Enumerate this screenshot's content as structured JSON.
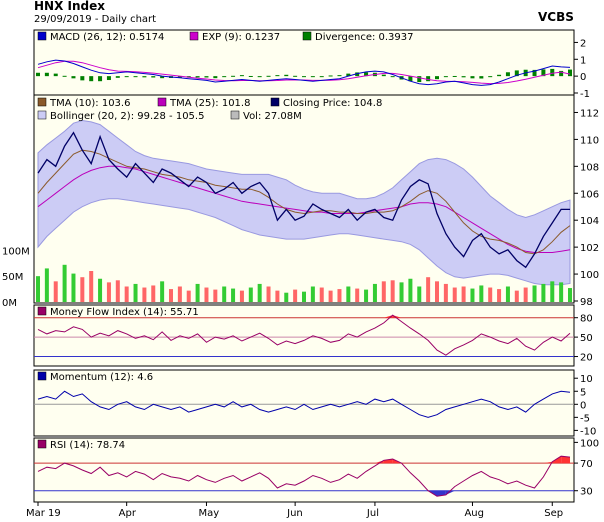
{
  "header": {
    "title": "HNX Index",
    "subtitle": "29/09/2019 - Daily chart",
    "brand": "VCBS"
  },
  "colors": {
    "background": "#ffffffff",
    "panel_bg": "#fffff0",
    "macd": "#0000cc",
    "signal": "#cc00cc",
    "divergence": "#008000",
    "tma10": "#8b5a2b",
    "tma25": "#bb00bb",
    "price": "#000066",
    "bollinger_fill": "#ccccf5",
    "bollinger_line": "#9999e0",
    "volume_up": "#33cc33",
    "volume_down": "#ff6666",
    "mfi": "#990066",
    "momentum": "#0000aa",
    "rsi": "#990066",
    "overbought_fill": "#ff3333",
    "oversold_fill": "#3333cc"
  },
  "chart_data": [
    {
      "type": "line",
      "panel": "macd",
      "legend": [
        "MACD (26, 12): 0.5174",
        "EXP (9): 0.1237",
        "Divergence: 0.3937"
      ],
      "y_ticks": [
        "2",
        "1",
        "0",
        "-1"
      ],
      "ylim": [
        -1,
        2.5
      ],
      "series": [
        {
          "name": "MACD (26, 12)",
          "values": [
            0.7,
            0.85,
            0.95,
            0.9,
            0.75,
            0.55,
            0.35,
            0.2,
            0.15,
            0.2,
            0.25,
            0.2,
            0.15,
            0.1,
            0.0,
            -0.05,
            -0.1,
            -0.15,
            -0.2,
            -0.25,
            -0.35,
            -0.3,
            -0.25,
            -0.2,
            -0.25,
            -0.3,
            -0.25,
            -0.2,
            -0.15,
            -0.2,
            -0.25,
            -0.3,
            -0.25,
            -0.2,
            -0.15,
            0.0,
            0.15,
            0.25,
            0.3,
            0.25,
            0.1,
            -0.1,
            -0.3,
            -0.45,
            -0.5,
            -0.45,
            -0.35,
            -0.3,
            -0.4,
            -0.5,
            -0.55,
            -0.5,
            -0.35,
            -0.15,
            0.05,
            0.2,
            0.3,
            0.45,
            0.6,
            0.55,
            0.52
          ]
        },
        {
          "name": "EXP (9)",
          "values": [
            0.5,
            0.65,
            0.8,
            0.88,
            0.88,
            0.8,
            0.65,
            0.5,
            0.38,
            0.3,
            0.28,
            0.26,
            0.22,
            0.18,
            0.12,
            0.06,
            0.0,
            -0.06,
            -0.12,
            -0.17,
            -0.23,
            -0.26,
            -0.27,
            -0.26,
            -0.26,
            -0.27,
            -0.27,
            -0.26,
            -0.23,
            -0.22,
            -0.23,
            -0.25,
            -0.25,
            -0.24,
            -0.21,
            -0.15,
            -0.07,
            0.02,
            0.1,
            0.16,
            0.16,
            0.1,
            0.0,
            -0.1,
            -0.2,
            -0.27,
            -0.3,
            -0.31,
            -0.33,
            -0.37,
            -0.41,
            -0.44,
            -0.43,
            -0.38,
            -0.29,
            -0.18,
            -0.07,
            0.05,
            0.17,
            0.24,
            0.12
          ]
        },
        {
          "name": "Divergence",
          "values": [
            0.2,
            0.2,
            0.15,
            0.02,
            -0.13,
            -0.25,
            -0.3,
            -0.3,
            -0.23,
            -0.1,
            -0.03,
            -0.06,
            -0.07,
            -0.08,
            -0.12,
            -0.11,
            -0.1,
            -0.09,
            -0.08,
            -0.08,
            -0.12,
            -0.04,
            0.02,
            0.06,
            0.01,
            -0.03,
            0.02,
            0.06,
            0.08,
            0.02,
            -0.02,
            -0.05,
            0.0,
            0.04,
            0.06,
            0.15,
            0.22,
            0.23,
            0.2,
            0.09,
            -0.06,
            -0.2,
            -0.3,
            -0.35,
            -0.3,
            -0.18,
            -0.05,
            0.01,
            -0.07,
            -0.13,
            -0.14,
            -0.06,
            0.08,
            0.23,
            0.34,
            0.38,
            0.37,
            0.4,
            0.43,
            0.31,
            0.39
          ]
        }
      ]
    },
    {
      "type": "line",
      "panel": "price",
      "legend": [
        "TMA (10): 103.6",
        "TMA (25): 101.8",
        "Closing Price: 104.8",
        "Bollinger (20, 2): 99.28 - 105.5",
        "Vol: 27.08M"
      ],
      "y_ticks": [
        "112",
        "110",
        "108",
        "106",
        "104",
        "102",
        "100",
        "98"
      ],
      "volume_ticks": [
        "100M",
        "50M",
        "0M"
      ],
      "ylim": [
        98,
        113
      ],
      "x_labels": [
        "Mar 19",
        "Apr",
        "May",
        "Jun",
        "Jul",
        "Aug",
        "Sep"
      ],
      "series": [
        {
          "name": "Closing Price",
          "values": [
            107.5,
            108.5,
            108.0,
            109.5,
            110.5,
            109.2,
            108.2,
            110.2,
            108.5,
            107.8,
            107.2,
            108.2,
            107.5,
            106.8,
            107.8,
            107.5,
            107.0,
            106.5,
            107.2,
            106.8,
            106.0,
            106.3,
            106.8,
            106.0,
            106.5,
            106.8,
            106.0,
            104.0,
            104.8,
            104.0,
            104.3,
            105.2,
            104.8,
            104.5,
            104.2,
            104.8,
            104.0,
            104.6,
            104.8,
            104.2,
            104.0,
            105.5,
            106.5,
            107.0,
            106.7,
            104.5,
            103.0,
            102.0,
            101.3,
            102.5,
            103.0,
            102.0,
            101.5,
            101.8,
            101.0,
            100.5,
            101.5,
            102.8,
            103.8,
            104.8,
            104.8
          ]
        },
        {
          "name": "TMA (10)",
          "values": [
            106.0,
            106.8,
            107.5,
            108.2,
            108.9,
            109.2,
            109.1,
            108.9,
            108.6,
            108.3,
            108.0,
            107.9,
            107.8,
            107.6,
            107.4,
            107.3,
            107.2,
            107.0,
            106.9,
            106.8,
            106.6,
            106.5,
            106.4,
            106.3,
            106.3,
            106.1,
            105.7,
            105.2,
            104.8,
            104.6,
            104.5,
            104.6,
            104.7,
            104.7,
            104.6,
            104.6,
            104.5,
            104.5,
            104.6,
            104.6,
            104.7,
            105.0,
            105.4,
            105.9,
            106.2,
            106.0,
            105.4,
            104.6,
            103.8,
            103.2,
            102.8,
            102.6,
            102.5,
            102.3,
            102.0,
            101.6,
            101.5,
            101.8,
            102.4,
            103.1,
            103.6
          ]
        },
        {
          "name": "TMA (25)",
          "values": [
            105.0,
            105.5,
            106.0,
            106.5,
            107.0,
            107.4,
            107.7,
            107.9,
            108.0,
            108.0,
            107.9,
            107.8,
            107.6,
            107.4,
            107.2,
            107.0,
            106.8,
            106.6,
            106.4,
            106.2,
            106.0,
            105.8,
            105.6,
            105.4,
            105.3,
            105.2,
            105.1,
            105.0,
            104.9,
            104.8,
            104.7,
            104.6,
            104.6,
            104.5,
            104.5,
            104.5,
            104.5,
            104.6,
            104.7,
            104.8,
            104.9,
            105.0,
            105.2,
            105.3,
            105.3,
            105.2,
            105.0,
            104.6,
            104.2,
            103.8,
            103.4,
            103.0,
            102.6,
            102.2,
            101.9,
            101.7,
            101.6,
            101.6,
            101.6,
            101.7,
            101.8
          ]
        },
        {
          "name": "Bollinger Upper",
          "values": [
            109.0,
            109.6,
            110.1,
            110.6,
            111.2,
            111.4,
            111.3,
            111.1,
            110.6,
            110.1,
            109.6,
            109.1,
            108.8,
            108.6,
            108.5,
            108.4,
            108.3,
            108.2,
            108.0,
            107.8,
            107.7,
            107.6,
            107.5,
            107.4,
            107.4,
            107.4,
            107.4,
            107.2,
            107.0,
            106.6,
            106.3,
            106.1,
            106.0,
            106.0,
            106.0,
            105.8,
            105.6,
            105.6,
            105.7,
            106.0,
            106.4,
            107.0,
            107.6,
            108.2,
            108.5,
            108.6,
            108.5,
            108.2,
            107.8,
            107.2,
            106.5,
            105.8,
            105.3,
            104.8,
            104.4,
            104.2,
            104.4,
            104.7,
            105.0,
            105.3,
            105.5
          ]
        },
        {
          "name": "Bollinger Lower",
          "values": [
            102.0,
            102.8,
            103.4,
            104.0,
            104.6,
            105.0,
            105.3,
            105.5,
            105.6,
            105.6,
            105.5,
            105.4,
            105.3,
            105.2,
            105.1,
            105.0,
            104.9,
            104.8,
            104.6,
            104.4,
            104.2,
            103.9,
            103.6,
            103.3,
            103.1,
            102.9,
            102.8,
            102.7,
            102.6,
            102.6,
            102.6,
            102.7,
            102.8,
            102.9,
            103.0,
            103.0,
            102.9,
            102.8,
            102.7,
            102.6,
            102.5,
            102.4,
            102.2,
            101.8,
            101.2,
            100.6,
            100.1,
            99.8,
            99.7,
            99.8,
            99.9,
            100.0,
            100.0,
            99.9,
            99.7,
            99.5,
            99.3,
            99.2,
            99.2,
            99.2,
            99.3
          ]
        },
        {
          "name": "Vol",
          "values": [
            50,
            65,
            40,
            72,
            55,
            48,
            60,
            45,
            38,
            42,
            30,
            35,
            28,
            32,
            40,
            25,
            30,
            22,
            35,
            28,
            24,
            30,
            26,
            22,
            28,
            35,
            30,
            22,
            18,
            24,
            20,
            30,
            28,
            22,
            25,
            30,
            26,
            24,
            35,
            40,
            42,
            38,
            45,
            30,
            48,
            40,
            35,
            28,
            30,
            26,
            32,
            28,
            25,
            30,
            22,
            28,
            32,
            35,
            40,
            38,
            27
          ]
        }
      ]
    },
    {
      "type": "line",
      "panel": "mfi",
      "legend": [
        "Money Flow Index (14): 55.71"
      ],
      "y_ticks": [
        "80",
        "50",
        "20"
      ],
      "ylim": [
        10,
        95
      ],
      "series": [
        {
          "name": "Money Flow Index (14)",
          "values": [
            62,
            55,
            60,
            58,
            66,
            62,
            50,
            56,
            52,
            60,
            55,
            48,
            52,
            46,
            58,
            45,
            52,
            48,
            55,
            42,
            50,
            47,
            52,
            44,
            50,
            56,
            48,
            38,
            44,
            40,
            45,
            52,
            48,
            42,
            45,
            55,
            50,
            58,
            64,
            72,
            84,
            74,
            64,
            55,
            45,
            30,
            22,
            32,
            38,
            45,
            55,
            50,
            44,
            40,
            48,
            36,
            30,
            42,
            50,
            44,
            56
          ]
        }
      ]
    },
    {
      "type": "line",
      "panel": "momentum",
      "legend": [
        "Momentum (12): 4.6"
      ],
      "y_ticks": [
        "10",
        "5",
        "0",
        "-5",
        "-10"
      ],
      "ylim": [
        -11,
        12
      ],
      "series": [
        {
          "name": "Momentum (12)",
          "values": [
            2,
            3,
            2,
            5,
            3,
            4,
            1,
            -1,
            -2,
            0,
            1,
            -1,
            -2,
            0,
            -1,
            -2,
            -1,
            -3,
            -2,
            -1,
            0,
            -1,
            1,
            -1,
            0,
            -2,
            -3,
            -2,
            -1,
            -2,
            0,
            -2,
            -1,
            0,
            -1,
            0,
            1,
            0,
            2,
            1,
            2,
            0,
            -2,
            -4,
            -5,
            -4,
            -2,
            -1,
            0,
            1,
            2,
            1,
            -1,
            -2,
            -1,
            -3,
            0,
            2,
            4,
            5,
            4.6
          ]
        }
      ]
    },
    {
      "type": "line",
      "panel": "rsi",
      "legend": [
        "RSI (14): 78.74"
      ],
      "y_ticks": [
        "100",
        "70",
        "30"
      ],
      "ylim": [
        18,
        102
      ],
      "series": [
        {
          "name": "RSI (14)",
          "values": [
            58,
            64,
            62,
            70,
            66,
            60,
            55,
            64,
            52,
            56,
            50,
            58,
            54,
            46,
            55,
            50,
            48,
            44,
            52,
            46,
            42,
            48,
            52,
            44,
            50,
            56,
            48,
            34,
            40,
            38,
            44,
            52,
            48,
            42,
            46,
            54,
            48,
            58,
            66,
            74,
            76,
            70,
            56,
            44,
            30,
            22,
            24,
            36,
            44,
            52,
            58,
            50,
            46,
            40,
            44,
            38,
            34,
            50,
            72,
            80,
            78.74
          ]
        }
      ]
    }
  ]
}
